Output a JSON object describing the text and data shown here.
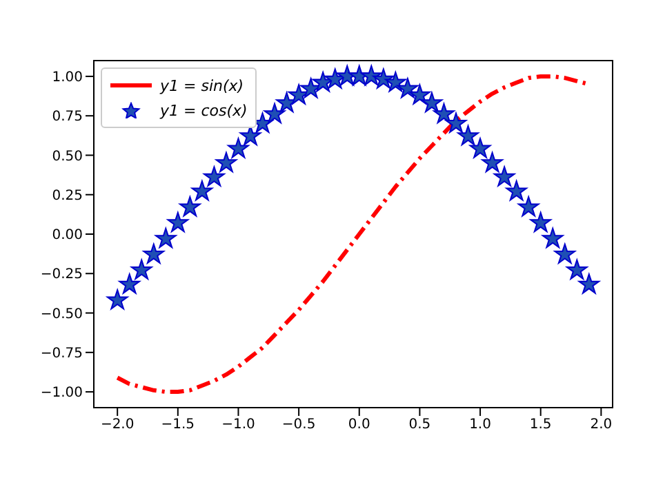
{
  "chart_data": {
    "type": "line",
    "x": [
      -2.0,
      -1.9,
      -1.8,
      -1.7,
      -1.6,
      -1.5,
      -1.4,
      -1.3,
      -1.2,
      -1.1,
      -1.0,
      -0.9,
      -0.8,
      -0.7,
      -0.6,
      -0.5,
      -0.4,
      -0.3,
      -0.2,
      -0.1,
      0.0,
      0.1,
      0.2,
      0.3,
      0.4,
      0.5,
      0.6,
      0.7,
      0.8,
      0.9,
      1.0,
      1.1,
      1.2,
      1.3,
      1.4,
      1.5,
      1.6,
      1.7,
      1.8,
      1.9
    ],
    "series": [
      {
        "name": "y1 = sin(x)",
        "color": "#ff0000",
        "line_style": "dashdot",
        "marker": "none",
        "values": [
          -0.91,
          -0.95,
          -0.97,
          -0.99,
          -1.0,
          -1.0,
          -0.99,
          -0.96,
          -0.93,
          -0.89,
          -0.84,
          -0.78,
          -0.72,
          -0.64,
          -0.56,
          -0.48,
          -0.39,
          -0.3,
          -0.2,
          -0.1,
          0.0,
          0.1,
          0.2,
          0.3,
          0.39,
          0.48,
          0.56,
          0.64,
          0.72,
          0.78,
          0.84,
          0.89,
          0.93,
          0.96,
          0.99,
          1.0,
          1.0,
          0.99,
          0.97,
          0.95
        ]
      },
      {
        "name": "y1 = cos(x)",
        "type": "scatter",
        "color": "#1f4fb4",
        "marker": "star",
        "values": [
          -0.42,
          -0.32,
          -0.23,
          -0.13,
          -0.03,
          0.07,
          0.17,
          0.27,
          0.36,
          0.45,
          0.54,
          0.62,
          0.7,
          0.76,
          0.83,
          0.88,
          0.92,
          0.96,
          0.98,
          1.0,
          1.0,
          1.0,
          0.98,
          0.96,
          0.92,
          0.88,
          0.83,
          0.76,
          0.7,
          0.62,
          0.54,
          0.45,
          0.36,
          0.27,
          0.17,
          0.07,
          -0.03,
          -0.13,
          -0.23,
          -0.32
        ]
      }
    ],
    "xlim": [
      -2.195,
      2.095
    ],
    "xticks": [
      {
        "value": -2,
        "label": "−2.0"
      },
      {
        "value": -1.5,
        "label": "−1.5"
      },
      {
        "value": -1,
        "label": "−1.0"
      },
      {
        "value": -0.5,
        "label": "−0.5"
      },
      {
        "value": 0,
        "label": "0.0"
      },
      {
        "value": 0.5,
        "label": "0.5"
      },
      {
        "value": 1,
        "label": "1.0"
      },
      {
        "value": 1.5,
        "label": "1.5"
      },
      {
        "value": 2,
        "label": "2.0"
      }
    ],
    "ylim": [
      -1.1,
      1.1
    ],
    "yticks": [
      {
        "value": -1,
        "label": "−1.00"
      },
      {
        "value": -0.75,
        "label": "−0.75"
      },
      {
        "value": -0.5,
        "label": "−0.50"
      },
      {
        "value": -0.25,
        "label": "−0.25"
      },
      {
        "value": 0,
        "label": "0.00"
      },
      {
        "value": 0.25,
        "label": "0.25"
      },
      {
        "value": 0.5,
        "label": "0.50"
      },
      {
        "value": 0.75,
        "label": "0.75"
      },
      {
        "value": 1,
        "label": "1.00"
      }
    ],
    "legend": "top left",
    "grid": false
  }
}
